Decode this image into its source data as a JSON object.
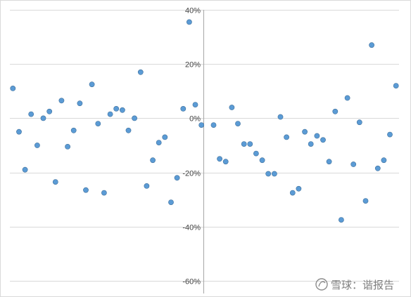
{
  "chart_data": {
    "type": "scatter",
    "ylim": [
      -0.6,
      0.4
    ],
    "y_ticks": [
      0.4,
      0.2,
      0,
      -0.2,
      -0.4,
      -0.6
    ],
    "y_tick_labels": [
      "40%",
      "20%",
      "0%",
      "-20%",
      "-40%",
      "-60%"
    ],
    "grid": true,
    "points": [
      {
        "x": 1,
        "y": 0.11
      },
      {
        "x": 2,
        "y": -0.05
      },
      {
        "x": 3,
        "y": -0.19
      },
      {
        "x": 4,
        "y": 0.015
      },
      {
        "x": 5,
        "y": -0.1
      },
      {
        "x": 6,
        "y": 0.0
      },
      {
        "x": 7,
        "y": 0.025
      },
      {
        "x": 8,
        "y": -0.235
      },
      {
        "x": 9,
        "y": 0.065
      },
      {
        "x": 10,
        "y": -0.105
      },
      {
        "x": 11,
        "y": -0.045
      },
      {
        "x": 12,
        "y": 0.055
      },
      {
        "x": 13,
        "y": -0.265
      },
      {
        "x": 14,
        "y": 0.125
      },
      {
        "x": 15,
        "y": -0.02
      },
      {
        "x": 16,
        "y": -0.275
      },
      {
        "x": 17,
        "y": 0.015
      },
      {
        "x": 18,
        "y": 0.035
      },
      {
        "x": 19,
        "y": 0.03
      },
      {
        "x": 20,
        "y": -0.045
      },
      {
        "x": 21,
        "y": 0.0
      },
      {
        "x": 22,
        "y": 0.17
      },
      {
        "x": 23,
        "y": -0.25
      },
      {
        "x": 24,
        "y": -0.155
      },
      {
        "x": 25,
        "y": -0.09
      },
      {
        "x": 26,
        "y": -0.07
      },
      {
        "x": 27,
        "y": -0.31
      },
      {
        "x": 28,
        "y": -0.22
      },
      {
        "x": 29,
        "y": 0.035
      },
      {
        "x": 30,
        "y": 0.355
      },
      {
        "x": 31,
        "y": 0.05
      },
      {
        "x": 32,
        "y": -0.025
      },
      {
        "x": 34,
        "y": -0.025
      },
      {
        "x": 35,
        "y": -0.15
      },
      {
        "x": 36,
        "y": -0.16
      },
      {
        "x": 37,
        "y": 0.04
      },
      {
        "x": 38,
        "y": -0.02
      },
      {
        "x": 39,
        "y": -0.095
      },
      {
        "x": 40,
        "y": -0.095
      },
      {
        "x": 41,
        "y": -0.13
      },
      {
        "x": 42,
        "y": -0.155
      },
      {
        "x": 43,
        "y": -0.205
      },
      {
        "x": 44,
        "y": -0.205
      },
      {
        "x": 45,
        "y": 0.005
      },
      {
        "x": 46,
        "y": -0.07
      },
      {
        "x": 47,
        "y": -0.275
      },
      {
        "x": 48,
        "y": -0.26
      },
      {
        "x": 49,
        "y": -0.05
      },
      {
        "x": 50,
        "y": -0.095
      },
      {
        "x": 51,
        "y": -0.065
      },
      {
        "x": 52,
        "y": -0.08
      },
      {
        "x": 53,
        "y": -0.16
      },
      {
        "x": 54,
        "y": 0.025
      },
      {
        "x": 55,
        "y": -0.375
      },
      {
        "x": 56,
        "y": 0.075
      },
      {
        "x": 57,
        "y": -0.17
      },
      {
        "x": 58,
        "y": -0.015
      },
      {
        "x": 59,
        "y": -0.305
      },
      {
        "x": 60,
        "y": 0.27
      },
      {
        "x": 61,
        "y": -0.185
      },
      {
        "x": 62,
        "y": -0.155
      },
      {
        "x": 63,
        "y": -0.06
      },
      {
        "x": 64,
        "y": 0.12
      }
    ]
  },
  "watermark": {
    "text": "雪球：谐报告",
    "icon": "snowball-logo-icon"
  },
  "colors": {
    "points": "#5b9bd5",
    "grid": "#d9d9d9",
    "axis": "#a6a6a6"
  }
}
